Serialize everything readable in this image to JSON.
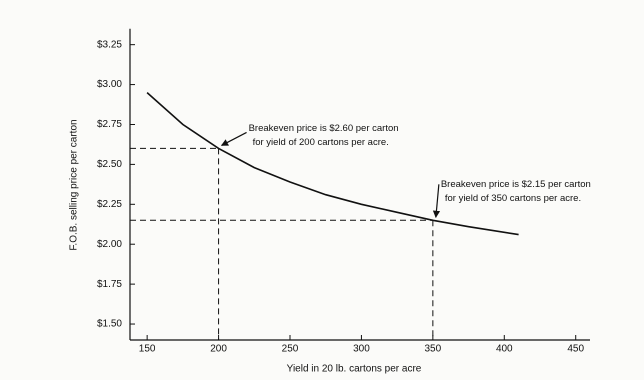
{
  "chart_data": {
    "type": "line",
    "x_label": "Yield in 20 lb. cartons per acre",
    "y_label": "F.O.B. selling price per carton",
    "x": [
      150,
      175,
      200,
      225,
      250,
      275,
      300,
      325,
      350,
      375,
      410
    ],
    "series": [
      {
        "name": null,
        "color": "#111111",
        "values": [
          2.95,
          2.75,
          2.6,
          2.48,
          2.39,
          2.31,
          2.25,
          2.2,
          2.15,
          2.11,
          2.06
        ]
      }
    ],
    "xlim": [
      138,
      460
    ],
    "ylim": [
      1.4,
      3.35
    ],
    "xticks": [
      150,
      200,
      250,
      300,
      350,
      400,
      450
    ],
    "yticks": [
      {
        "value": 1.5,
        "label": "$1.50"
      },
      {
        "value": 1.75,
        "label": "$1.75"
      },
      {
        "value": 2.0,
        "label": "$2.00"
      },
      {
        "value": 2.25,
        "label": "$2.25"
      },
      {
        "value": 2.5,
        "label": "$2.50"
      },
      {
        "value": 2.75,
        "label": "$2.75"
      },
      {
        "value": 3.0,
        "label": "$3.00"
      },
      {
        "value": 3.25,
        "label": "$3.25"
      }
    ],
    "annotations": [
      {
        "x": 200,
        "y": 2.6,
        "lines": [
          "Breakeven price is $2.60 per carton",
          "for yield of 200 cartons per acre."
        ]
      },
      {
        "x": 350,
        "y": 2.15,
        "lines": [
          "Breakeven price is $2.15 per carton",
          "for yield of 350 cartons per acre."
        ]
      }
    ]
  }
}
